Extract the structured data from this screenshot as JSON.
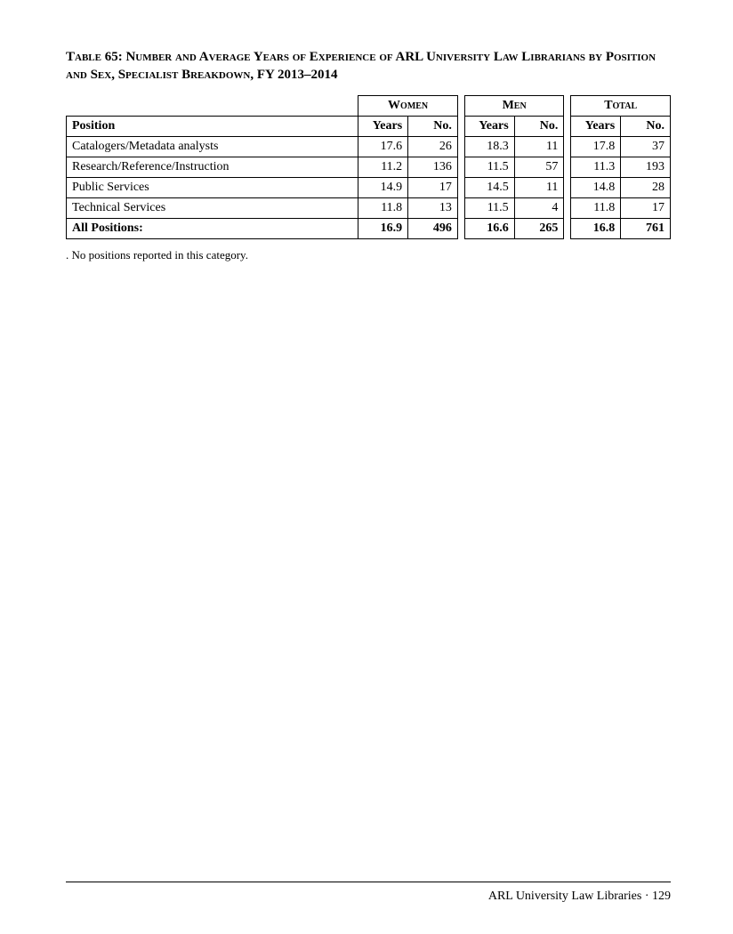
{
  "title": "Table 65: Number and Average Years of Experience of ARL University Law Librarians by Position and Sex, Specialist Breakdown, FY 2013–2014",
  "groups": {
    "g1": "Women",
    "g2": "Men",
    "g3": "Total"
  },
  "subheads": {
    "position": "Position",
    "years": "Years",
    "no": "No."
  },
  "rows": [
    {
      "pos": "Catalogers/Metadata analysts",
      "wY": "17.6",
      "wN": "26",
      "mY": "18.3",
      "mN": "11",
      "tY": "17.8",
      "tN": "37"
    },
    {
      "pos": "Research/Reference/Instruction",
      "wY": "11.2",
      "wN": "136",
      "mY": "11.5",
      "mN": "57",
      "tY": "11.3",
      "tN": "193"
    },
    {
      "pos": "Public Services",
      "wY": "14.9",
      "wN": "17",
      "mY": "14.5",
      "mN": "11",
      "tY": "14.8",
      "tN": "28"
    },
    {
      "pos": "Technical Services",
      "wY": "11.8",
      "wN": "13",
      "mY": "11.5",
      "mN": "4",
      "tY": "11.8",
      "tN": "17"
    }
  ],
  "total": {
    "pos": "All Positions:",
    "wY": "16.9",
    "wN": "496",
    "mY": "16.6",
    "mN": "265",
    "tY": "16.8",
    "tN": "761"
  },
  "footnote": ". No positions reported in this category.",
  "footer": "ARL University Law Libraries · 129"
}
